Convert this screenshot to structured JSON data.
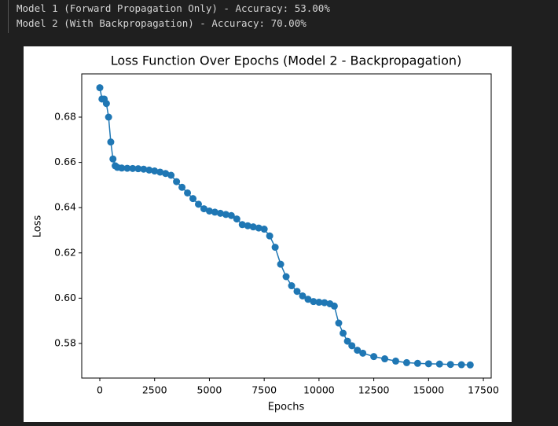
{
  "output": {
    "lines": [
      "Model 1 (Forward Propagation Only) - Accuracy: 53.00%",
      "Model 2 (With Backpropagation) - Accuracy: 70.00%"
    ]
  },
  "chart_data": {
    "type": "line",
    "title": "Loss Function Over Epochs (Model 2 - Backpropagation)",
    "x_label": "Epochs",
    "y_label": "Loss",
    "x": [
      0,
      100,
      200,
      300,
      400,
      500,
      600,
      700,
      800,
      1000,
      1250,
      1500,
      1750,
      2000,
      2250,
      2500,
      2750,
      3000,
      3250,
      3500,
      3750,
      4000,
      4250,
      4500,
      4750,
      5000,
      5250,
      5500,
      5750,
      6000,
      6250,
      6500,
      6750,
      7000,
      7250,
      7500,
      7750,
      8000,
      8250,
      8500,
      8750,
      9000,
      9250,
      9500,
      9750,
      10000,
      10250,
      10500,
      10700,
      10900,
      11100,
      11300,
      11500,
      11750,
      12000,
      12500,
      13000,
      13500,
      14000,
      14500,
      15000,
      15500,
      16000,
      16500,
      16900
    ],
    "series": [
      {
        "name": "Loss",
        "color": "#1f77b4",
        "values": [
          0.693,
          0.688,
          0.688,
          0.686,
          0.68,
          0.669,
          0.6615,
          0.6585,
          0.6578,
          0.6575,
          0.6574,
          0.6573,
          0.6572,
          0.657,
          0.6566,
          0.6562,
          0.6557,
          0.6551,
          0.6543,
          0.6515,
          0.649,
          0.6465,
          0.644,
          0.6415,
          0.6395,
          0.6385,
          0.638,
          0.6375,
          0.637,
          0.6365,
          0.635,
          0.6325,
          0.632,
          0.6315,
          0.631,
          0.6305,
          0.6275,
          0.6225,
          0.615,
          0.6095,
          0.6055,
          0.603,
          0.601,
          0.5995,
          0.5985,
          0.5982,
          0.598,
          0.5975,
          0.5965,
          0.589,
          0.5845,
          0.581,
          0.579,
          0.577,
          0.5757,
          0.5742,
          0.5732,
          0.5722,
          0.5715,
          0.5712,
          0.571,
          0.5709,
          0.5707,
          0.5706,
          0.5705
        ]
      }
    ],
    "xlim": [
      -825,
      17857
    ],
    "ylim": [
      0.5647,
      0.6991
    ],
    "xticks": [
      0,
      2500,
      5000,
      7500,
      10000,
      12500,
      15000,
      17500
    ],
    "yticks": [
      0.58,
      {
        "value": 0.6,
        "label": "0.60"
      },
      0.62,
      0.64,
      0.66,
      0.68
    ]
  }
}
